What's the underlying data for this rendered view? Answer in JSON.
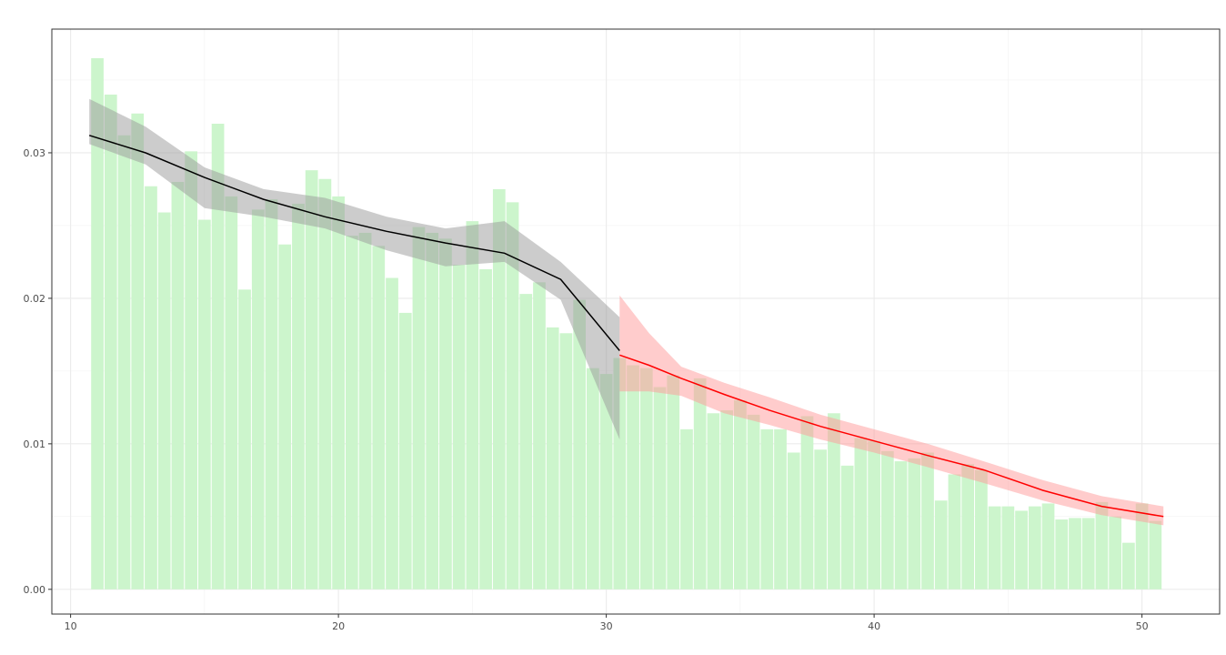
{
  "chart_data": {
    "type": "bar",
    "title": "",
    "xlabel": "",
    "ylabel": "",
    "xlim": [
      9.3,
      52.9
    ],
    "ylim": [
      -0.0017,
      0.0385
    ],
    "grid": true,
    "legend": "none",
    "x_ticks": [
      {
        "value": 10,
        "label": "10"
      },
      {
        "value": 20,
        "label": "20"
      },
      {
        "value": 30,
        "label": "30"
      },
      {
        "value": 40,
        "label": "40"
      },
      {
        "value": 50,
        "label": "50"
      }
    ],
    "y_ticks": [
      {
        "value": 0.0,
        "label": "0.00"
      },
      {
        "value": 0.01,
        "label": "0.01"
      },
      {
        "value": 0.02,
        "label": "0.02"
      },
      {
        "value": 0.03,
        "label": "0.03"
      }
    ],
    "bars": {
      "color": "#ccf5cc",
      "width": 0.5,
      "x": [
        11.0,
        11.5,
        12.0,
        12.5,
        13.0,
        13.5,
        14.0,
        14.5,
        15.0,
        15.5,
        16.0,
        16.5,
        17.0,
        17.5,
        18.0,
        18.5,
        19.0,
        19.5,
        20.0,
        20.5,
        21.0,
        21.5,
        22.0,
        22.5,
        23.0,
        23.5,
        24.0,
        24.5,
        25.0,
        25.5,
        26.0,
        26.5,
        27.0,
        27.5,
        28.0,
        28.5,
        29.0,
        29.5,
        30.0,
        30.5,
        31.0,
        31.5,
        32.0,
        32.5,
        33.0,
        33.5,
        34.0,
        34.5,
        35.0,
        35.5,
        36.0,
        36.5,
        37.0,
        37.5,
        38.0,
        38.5,
        39.0,
        39.5,
        40.0,
        40.5,
        41.0,
        41.5,
        42.0,
        42.5,
        43.0,
        43.5,
        44.0,
        44.5,
        45.0,
        45.5,
        46.0,
        46.5,
        47.0,
        47.5,
        48.0,
        48.5,
        49.0,
        49.5,
        50.0,
        50.5
      ],
      "values": [
        0.0365,
        0.034,
        0.0312,
        0.0327,
        0.0277,
        0.0259,
        0.028,
        0.0301,
        0.0254,
        0.032,
        0.027,
        0.0206,
        0.0261,
        0.0268,
        0.0237,
        0.0265,
        0.0288,
        0.0282,
        0.027,
        0.0243,
        0.0245,
        0.0236,
        0.0214,
        0.019,
        0.0249,
        0.0245,
        0.0241,
        0.0223,
        0.0253,
        0.022,
        0.0275,
        0.0266,
        0.0203,
        0.0211,
        0.018,
        0.0176,
        0.0199,
        0.0152,
        0.0148,
        0.0159,
        0.0154,
        0.0152,
        0.0139,
        0.0147,
        0.011,
        0.0145,
        0.0121,
        0.0123,
        0.013,
        0.012,
        0.011,
        0.011,
        0.0094,
        0.0119,
        0.0096,
        0.0121,
        0.0085,
        0.0104,
        0.0102,
        0.0095,
        0.0088,
        0.009,
        0.0094,
        0.0061,
        0.0079,
        0.0086,
        0.0082,
        0.0057,
        0.0057,
        0.0054,
        0.0057,
        0.0059,
        0.0048,
        0.0049,
        0.0049,
        0.006,
        0.005,
        0.0032,
        0.0059,
        0.0047
      ]
    },
    "series": [
      {
        "color": "#000000",
        "band_color": "#999999",
        "x": [
          10.7,
          12.8,
          15.0,
          17.2,
          19.5,
          21.8,
          24.0,
          26.2,
          28.3,
          30.5
        ],
        "y": [
          0.0312,
          0.03,
          0.0283,
          0.0268,
          0.0256,
          0.0246,
          0.0238,
          0.0231,
          0.0213,
          0.0164
        ],
        "lower": [
          0.0306,
          0.0292,
          0.0262,
          0.0256,
          0.0248,
          0.0233,
          0.0222,
          0.0225,
          0.0199,
          0.0103
        ],
        "upper": [
          0.0337,
          0.0318,
          0.029,
          0.0275,
          0.0269,
          0.0256,
          0.0248,
          0.0253,
          0.0225,
          0.0187
        ]
      },
      {
        "color": "#ff0000",
        "band_color": "#ff9999",
        "x": [
          30.5,
          31.6,
          32.8,
          34.4,
          36.1,
          38.0,
          40.0,
          42.0,
          44.1,
          46.3,
          48.5,
          50.8
        ],
        "y": [
          0.0161,
          0.0154,
          0.0145,
          0.0134,
          0.0123,
          0.0112,
          0.0102,
          0.0092,
          0.0082,
          0.0068,
          0.0057,
          0.005
        ],
        "lower": [
          0.0136,
          0.0136,
          0.0133,
          0.0121,
          0.0113,
          0.0103,
          0.0094,
          0.0084,
          0.0073,
          0.0061,
          0.0051,
          0.0044
        ],
        "upper": [
          0.0202,
          0.0176,
          0.0153,
          0.0142,
          0.0132,
          0.012,
          0.011,
          0.01,
          0.0088,
          0.0075,
          0.0064,
          0.0057
        ]
      }
    ]
  }
}
